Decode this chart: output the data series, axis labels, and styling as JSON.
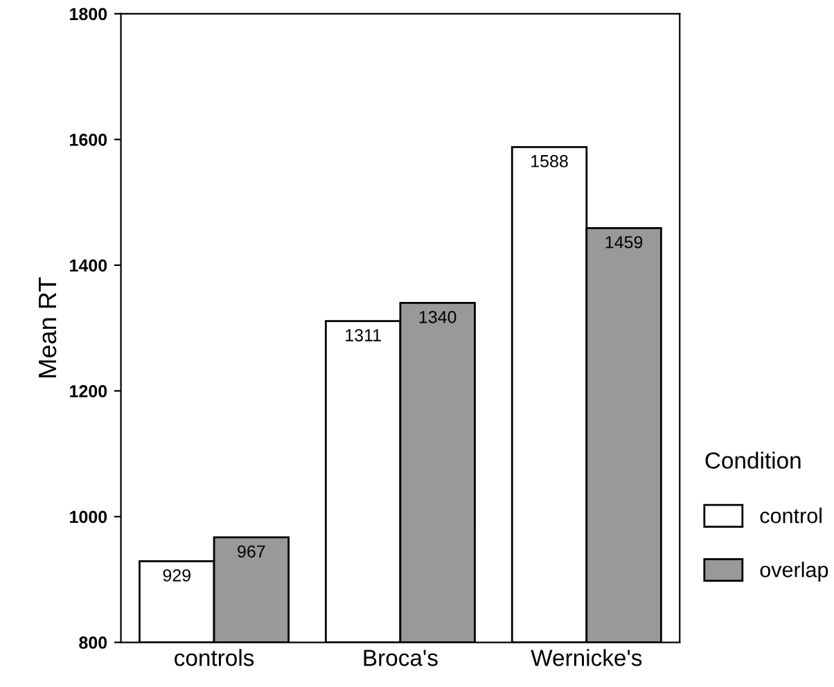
{
  "chart_data": {
    "type": "bar",
    "ylabel": "Mean RT",
    "legend_title": "Condition",
    "categories": [
      "controls",
      "Broca's",
      "Wernicke's"
    ],
    "series": [
      {
        "name": "control",
        "color": "#ffffff",
        "values": [
          929,
          1311,
          1588
        ]
      },
      {
        "name": "overlap",
        "color": "#999999",
        "values": [
          967,
          1340,
          1459
        ]
      }
    ],
    "ylim": [
      800,
      1800
    ],
    "yticks": [
      800,
      1000,
      1200,
      1400,
      1600,
      1800
    ],
    "data_labels": true,
    "grid": false,
    "legend": "right"
  }
}
